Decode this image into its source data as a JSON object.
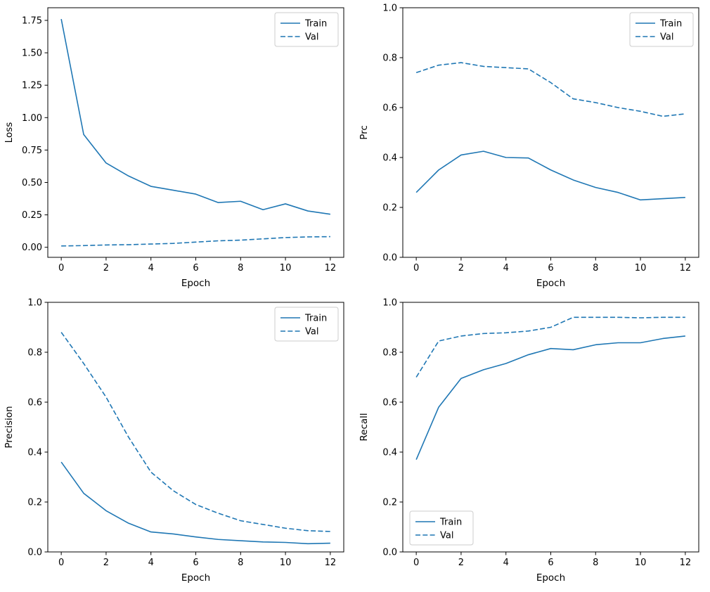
{
  "figure": {
    "background": "#ffffff",
    "line_color": "#1f77b4",
    "spine_color": "#000000",
    "legend_edge_color": "#cccccc"
  },
  "chart_data": [
    {
      "type": "line",
      "title": "",
      "xlabel": "Epoch",
      "ylabel": "Loss",
      "x": [
        0,
        1,
        2,
        3,
        4,
        5,
        6,
        7,
        8,
        9,
        10,
        11,
        12
      ],
      "series": [
        {
          "name": "Train",
          "style": "solid",
          "values": [
            1.76,
            0.87,
            0.65,
            0.55,
            0.47,
            0.44,
            0.41,
            0.345,
            0.355,
            0.29,
            0.335,
            0.28,
            0.255
          ]
        },
        {
          "name": "Val",
          "style": "dashed",
          "values": [
            0.01,
            0.013,
            0.018,
            0.02,
            0.025,
            0.03,
            0.04,
            0.05,
            0.055,
            0.065,
            0.075,
            0.08,
            0.082
          ]
        }
      ],
      "xlim": [
        -0.6,
        12.6
      ],
      "ylim": [
        -0.0775,
        1.8475
      ],
      "xticks": [
        0,
        2,
        4,
        6,
        8,
        10,
        12
      ],
      "xtick_labels": [
        "0",
        "2",
        "4",
        "6",
        "8",
        "10",
        "12"
      ],
      "yticks": [
        0.0,
        0.25,
        0.5,
        0.75,
        1.0,
        1.25,
        1.5,
        1.75
      ],
      "ytick_labels": [
        "0.00",
        "0.25",
        "0.50",
        "0.75",
        "1.00",
        "1.25",
        "1.50",
        "1.75"
      ],
      "legend_position": "upper right",
      "legend_labels": [
        "Train",
        "Val"
      ],
      "grid": false
    },
    {
      "type": "line",
      "title": "",
      "xlabel": "Epoch",
      "ylabel": "Prc",
      "x": [
        0,
        1,
        2,
        3,
        4,
        5,
        6,
        7,
        8,
        9,
        10,
        11,
        12
      ],
      "series": [
        {
          "name": "Train",
          "style": "solid",
          "values": [
            0.26,
            0.35,
            0.41,
            0.425,
            0.4,
            0.398,
            0.35,
            0.31,
            0.28,
            0.26,
            0.23,
            0.235,
            0.24
          ]
        },
        {
          "name": "Val",
          "style": "dashed",
          "values": [
            0.74,
            0.77,
            0.78,
            0.765,
            0.76,
            0.755,
            0.7,
            0.635,
            0.62,
            0.6,
            0.585,
            0.565,
            0.575
          ]
        }
      ],
      "xlim": [
        -0.6,
        12.6
      ],
      "ylim": [
        0.0,
        1.0
      ],
      "xticks": [
        0,
        2,
        4,
        6,
        8,
        10,
        12
      ],
      "xtick_labels": [
        "0",
        "2",
        "4",
        "6",
        "8",
        "10",
        "12"
      ],
      "yticks": [
        0.0,
        0.2,
        0.4,
        0.6,
        0.8,
        1.0
      ],
      "ytick_labels": [
        "0.0",
        "0.2",
        "0.4",
        "0.6",
        "0.8",
        "1.0"
      ],
      "legend_position": "upper right",
      "legend_labels": [
        "Train",
        "Val"
      ],
      "grid": false
    },
    {
      "type": "line",
      "title": "",
      "xlabel": "Epoch",
      "ylabel": "Precision",
      "x": [
        0,
        1,
        2,
        3,
        4,
        5,
        6,
        7,
        8,
        9,
        10,
        11,
        12
      ],
      "series": [
        {
          "name": "Train",
          "style": "solid",
          "values": [
            0.36,
            0.235,
            0.165,
            0.115,
            0.08,
            0.072,
            0.06,
            0.05,
            0.045,
            0.04,
            0.038,
            0.033,
            0.035
          ]
        },
        {
          "name": "Val",
          "style": "dashed",
          "values": [
            0.88,
            0.755,
            0.62,
            0.46,
            0.32,
            0.245,
            0.19,
            0.155,
            0.125,
            0.11,
            0.095,
            0.085,
            0.082
          ]
        }
      ],
      "xlim": [
        -0.6,
        12.6
      ],
      "ylim": [
        0.0,
        1.0
      ],
      "xticks": [
        0,
        2,
        4,
        6,
        8,
        10,
        12
      ],
      "xtick_labels": [
        "0",
        "2",
        "4",
        "6",
        "8",
        "10",
        "12"
      ],
      "yticks": [
        0.0,
        0.2,
        0.4,
        0.6,
        0.8,
        1.0
      ],
      "ytick_labels": [
        "0.0",
        "0.2",
        "0.4",
        "0.6",
        "0.8",
        "1.0"
      ],
      "legend_position": "upper right",
      "legend_labels": [
        "Train",
        "Val"
      ],
      "grid": false
    },
    {
      "type": "line",
      "title": "",
      "xlabel": "Epoch",
      "ylabel": "Recall",
      "x": [
        0,
        1,
        2,
        3,
        4,
        5,
        6,
        7,
        8,
        9,
        10,
        11,
        12
      ],
      "series": [
        {
          "name": "Train",
          "style": "solid",
          "values": [
            0.37,
            0.58,
            0.695,
            0.73,
            0.755,
            0.79,
            0.815,
            0.81,
            0.83,
            0.838,
            0.838,
            0.855,
            0.865
          ]
        },
        {
          "name": "Val",
          "style": "dashed",
          "values": [
            0.7,
            0.845,
            0.865,
            0.875,
            0.878,
            0.885,
            0.9,
            0.94,
            0.94,
            0.94,
            0.938,
            0.94,
            0.94
          ]
        }
      ],
      "xlim": [
        -0.6,
        12.6
      ],
      "ylim": [
        0.0,
        1.0
      ],
      "xticks": [
        0,
        2,
        4,
        6,
        8,
        10,
        12
      ],
      "xtick_labels": [
        "0",
        "2",
        "4",
        "6",
        "8",
        "10",
        "12"
      ],
      "yticks": [
        0.0,
        0.2,
        0.4,
        0.6,
        0.8,
        1.0
      ],
      "ytick_labels": [
        "0.0",
        "0.2",
        "0.4",
        "0.6",
        "0.8",
        "1.0"
      ],
      "legend_position": "lower left",
      "legend_labels": [
        "Train",
        "Val"
      ],
      "grid": false
    }
  ]
}
